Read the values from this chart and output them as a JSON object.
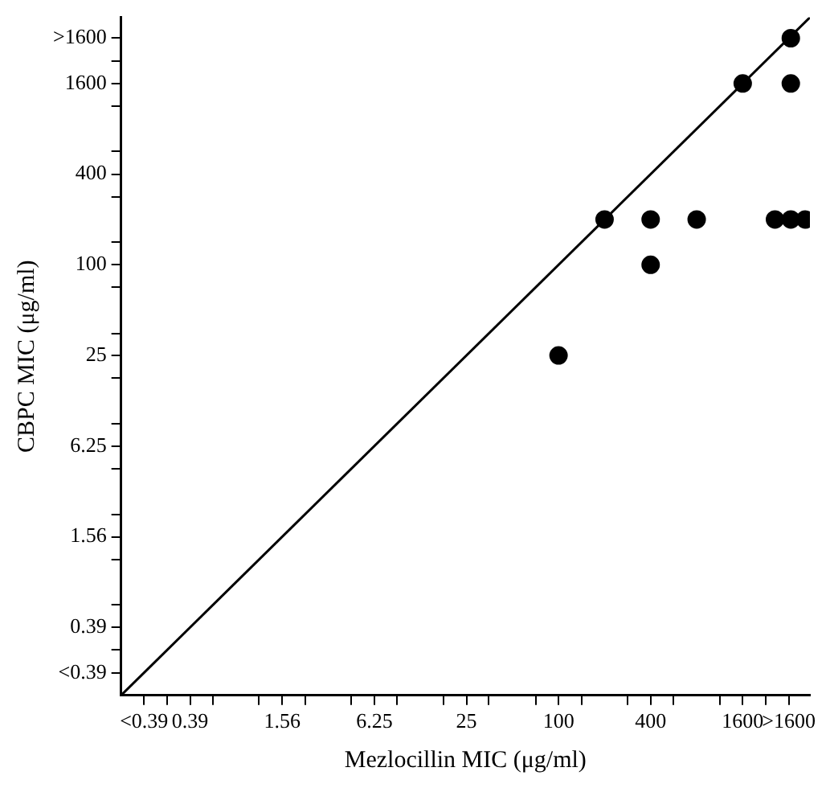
{
  "chart_data": {
    "type": "scatter",
    "xlabel": "Mezlocillin MIC (μg/ml)",
    "ylabel": "CBPC MIC (μg/ml)",
    "log": "xy",
    "marker": "circle",
    "grid": false,
    "legend": false,
    "xlim": [
      0.138,
      4400
    ],
    "ylim": [
      0.138,
      4400
    ],
    "xticks": [
      {
        "value": 0.195,
        "label": "<0.39"
      },
      {
        "value": 0.276,
        "label": null
      },
      0.39,
      {
        "value": 0.55,
        "label": null
      },
      {
        "value": 1.1,
        "label": null
      },
      1.56,
      {
        "value": 2.2,
        "label": null
      },
      {
        "value": 4.4,
        "label": null
      },
      6.25,
      {
        "value": 8.8,
        "label": null
      },
      {
        "value": 17.7,
        "label": null
      },
      25,
      {
        "value": 35,
        "label": null
      },
      {
        "value": 71,
        "label": null
      },
      100,
      {
        "value": 141,
        "label": null
      },
      {
        "value": 283,
        "label": null
      },
      400,
      {
        "value": 566,
        "label": null
      },
      {
        "value": 1131,
        "label": null
      },
      1600,
      {
        "value": 2263,
        "label": null
      },
      {
        "value": 3200,
        "label": ">1600"
      }
    ],
    "yticks": [
      {
        "value": 0.195,
        "label": "<0.39"
      },
      {
        "value": 0.276,
        "label": null
      },
      0.39,
      {
        "value": 0.55,
        "label": null
      },
      {
        "value": 1.1,
        "label": null
      },
      1.56,
      {
        "value": 2.2,
        "label": null
      },
      {
        "value": 4.4,
        "label": null
      },
      6.25,
      {
        "value": 8.8,
        "label": null
      },
      {
        "value": 17.7,
        "label": null
      },
      25,
      {
        "value": 35,
        "label": null
      },
      {
        "value": 71,
        "label": null
      },
      100,
      {
        "value": 141,
        "label": null
      },
      {
        "value": 283,
        "label": null
      },
      400,
      {
        "value": 566,
        "label": null
      },
      {
        "value": 1131,
        "label": null
      },
      1600,
      {
        "value": 2263,
        "label": null
      },
      {
        "value": 3200,
        "label": ">1600"
      }
    ],
    "series": [
      {
        "color": "#000000",
        "x": [
          100,
          200,
          400,
          400,
          800,
          1600,
          2600,
          3300,
          4100,
          3300,
          3300
        ],
        "values": [
          25,
          200,
          200,
          100,
          200,
          1600,
          200,
          200,
          200,
          1600,
          3200
        ]
      },
      {
        "type": "line",
        "color": "#000000",
        "marker": "none",
        "x": [
          0.138,
          4400
        ],
        "values": [
          0.138,
          4400
        ]
      }
    ]
  }
}
